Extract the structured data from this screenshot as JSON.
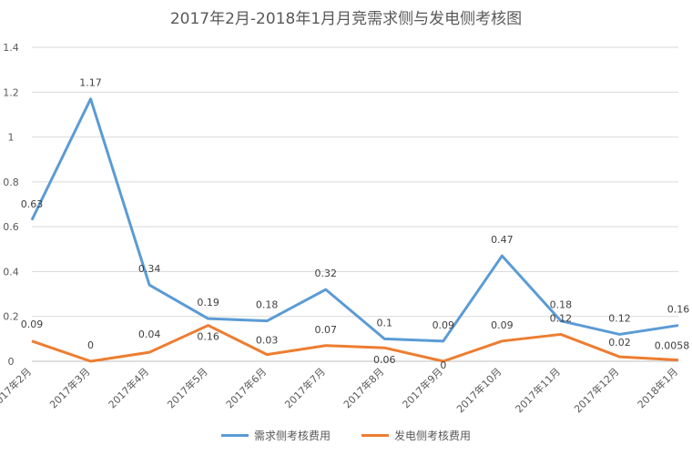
{
  "chart_data": {
    "type": "line",
    "title": "2017年2月-2018年1月月竞需求侧与发电侧考核图",
    "categories": [
      "2017年2月",
      "2017年3月",
      "2017年4月",
      "2017年5月",
      "2017年6月",
      "2017年7月",
      "2017年8月",
      "2017年9月",
      "2017年10月",
      "2017年11月",
      "2017年12月",
      "2018年1月"
    ],
    "series": [
      {
        "name": "需求侧考核费用",
        "color": "#5B9BD5",
        "values": [
          0.63,
          1.17,
          0.34,
          0.19,
          0.18,
          0.32,
          0.1,
          0.09,
          0.47,
          0.18,
          0.12,
          0.16
        ],
        "labels": [
          "0.63",
          "1.17",
          "0.34",
          "0.19",
          "0.18",
          "0.32",
          "0.1",
          "0.09",
          "0.47",
          "0.18",
          "0.12",
          "0.16"
        ]
      },
      {
        "name": "发电侧考核费用",
        "color": "#ED7D31",
        "values": [
          0.09,
          0,
          0.04,
          0.16,
          0.03,
          0.07,
          0.06,
          0,
          0.09,
          0.12,
          0.02,
          0.0058
        ],
        "labels": [
          "0.09",
          "0",
          "0.04",
          "0.16",
          "0.03",
          "0.07",
          "0.06",
          "0",
          "0.09",
          "0.12",
          "0.02",
          "0.0058"
        ]
      }
    ],
    "ylim": [
      0,
      1.4
    ],
    "yticks": [
      "0",
      "0.2",
      "0.4",
      "0.6",
      "0.8",
      "1",
      "1.2",
      "1.4"
    ],
    "grid": true,
    "legend_position": "bottom"
  }
}
